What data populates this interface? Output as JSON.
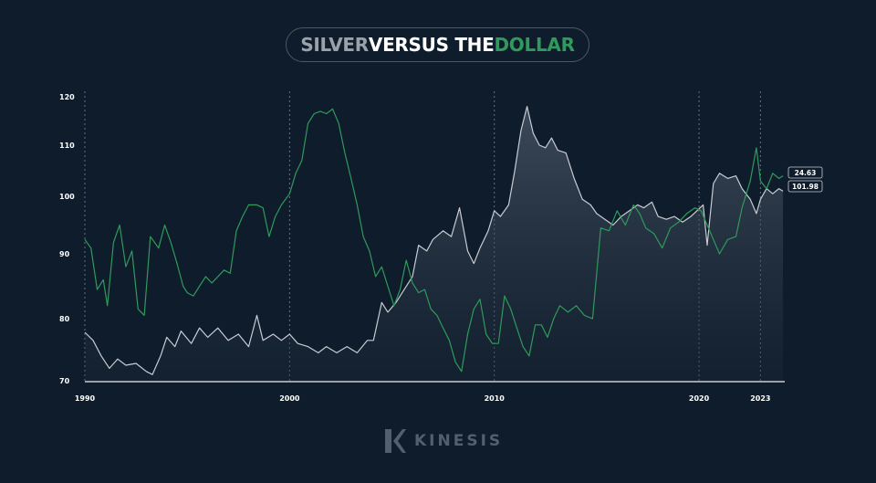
{
  "title": {
    "part1": "SILVER",
    "part2": " VERSUS THE ",
    "part3": "DOLLAR"
  },
  "colors": {
    "background": "#0f1c2b",
    "silver_line": "#c8ccd2",
    "dollar_line": "#2f9a5c",
    "title_silver": "#9aa1aa",
    "title_dollar": "#2f9a5c"
  },
  "logo": {
    "text": "KINESIS",
    "icon": "kinesis-k-icon"
  },
  "chart_data": {
    "type": "line",
    "x_ticks": [
      "1990",
      "2000",
      "2010",
      "2020",
      "2023"
    ],
    "y_ticks": [
      "120",
      "110",
      "100",
      "90",
      "80",
      "70"
    ],
    "xlim": [
      1990,
      2024.2
    ],
    "grid": "vertical dotted lines at 1990, 2000, 2010, 2020, 2023",
    "series": [
      {
        "key": "silver",
        "color": "#c8ccd2",
        "area_fill": true,
        "end_label": "24.63",
        "points": [
          [
            1990,
            77.8
          ],
          [
            1990.4,
            76.5
          ],
          [
            1990.8,
            74.0
          ],
          [
            1991.2,
            72.0
          ],
          [
            1991.6,
            73.5
          ],
          [
            1992.0,
            72.5
          ],
          [
            1992.5,
            72.8
          ],
          [
            1993.0,
            71.5
          ],
          [
            1993.3,
            71.0
          ],
          [
            1993.7,
            74.0
          ],
          [
            1994.0,
            77.0
          ],
          [
            1994.4,
            75.5
          ],
          [
            1994.7,
            78.0
          ],
          [
            1995.2,
            76.0
          ],
          [
            1995.6,
            78.5
          ],
          [
            1996.0,
            77.0
          ],
          [
            1996.5,
            78.5
          ],
          [
            1997.0,
            76.5
          ],
          [
            1997.5,
            77.5
          ],
          [
            1998.0,
            75.5
          ],
          [
            1998.4,
            80.5
          ],
          [
            1998.7,
            76.5
          ],
          [
            1999.2,
            77.5
          ],
          [
            1999.6,
            76.5
          ],
          [
            2000.0,
            77.5
          ],
          [
            2000.4,
            76.0
          ],
          [
            2000.9,
            75.5
          ],
          [
            2001.4,
            74.5
          ],
          [
            2001.8,
            75.5
          ],
          [
            2002.3,
            74.5
          ],
          [
            2002.8,
            75.5
          ],
          [
            2003.3,
            74.5
          ],
          [
            2003.8,
            76.5
          ],
          [
            2004.1,
            76.5
          ],
          [
            2004.5,
            82.5
          ],
          [
            2004.8,
            81.0
          ],
          [
            2005.2,
            82.5
          ],
          [
            2005.6,
            84.5
          ],
          [
            2006.0,
            86.5
          ],
          [
            2006.3,
            91.5
          ],
          [
            2006.7,
            90.5
          ],
          [
            2007.0,
            92.5
          ],
          [
            2007.5,
            94.0
          ],
          [
            2007.9,
            93.0
          ],
          [
            2008.3,
            98.0
          ],
          [
            2008.7,
            90.5
          ],
          [
            2009.0,
            88.5
          ],
          [
            2009.3,
            91.0
          ],
          [
            2009.7,
            94.0
          ],
          [
            2010.0,
            97.5
          ],
          [
            2010.3,
            96.5
          ],
          [
            2010.7,
            98.5
          ],
          [
            2011.0,
            105.0
          ],
          [
            2011.3,
            113.0
          ],
          [
            2011.6,
            118.0
          ],
          [
            2011.9,
            112.5
          ],
          [
            2012.2,
            110.0
          ],
          [
            2012.5,
            109.5
          ],
          [
            2012.8,
            111.5
          ],
          [
            2013.1,
            109.0
          ],
          [
            2013.5,
            108.5
          ],
          [
            2013.9,
            103.5
          ],
          [
            2014.3,
            99.5
          ],
          [
            2014.7,
            98.5
          ],
          [
            2015.0,
            97.0
          ],
          [
            2015.4,
            96.0
          ],
          [
            2015.8,
            95.0
          ],
          [
            2016.2,
            96.5
          ],
          [
            2016.6,
            97.5
          ],
          [
            2017.0,
            98.5
          ],
          [
            2017.3,
            98.0
          ],
          [
            2017.7,
            99.0
          ],
          [
            2018.0,
            96.5
          ],
          [
            2018.4,
            96.0
          ],
          [
            2018.8,
            96.5
          ],
          [
            2019.2,
            95.5
          ],
          [
            2019.6,
            96.5
          ],
          [
            2019.9,
            97.5
          ],
          [
            2020.2,
            98.5
          ],
          [
            2020.4,
            91.5
          ],
          [
            2020.7,
            102.5
          ],
          [
            2021.0,
            104.5
          ],
          [
            2021.4,
            103.5
          ],
          [
            2021.8,
            104.0
          ],
          [
            2022.1,
            101.5
          ],
          [
            2022.5,
            99.5
          ],
          [
            2022.8,
            97.0
          ],
          [
            2023.0,
            99.5
          ],
          [
            2023.3,
            101.5
          ],
          [
            2023.6,
            100.5
          ],
          [
            2023.9,
            101.5
          ],
          [
            2024.1,
            101.0
          ]
        ]
      },
      {
        "key": "dollar",
        "color": "#2f9a5c",
        "area_fill": false,
        "end_label": "101.98",
        "points": [
          [
            1990,
            92.5
          ],
          [
            1990.3,
            91.0
          ],
          [
            1990.6,
            84.5
          ],
          [
            1990.9,
            86.0
          ],
          [
            1991.1,
            82.0
          ],
          [
            1991.4,
            92.0
          ],
          [
            1991.7,
            95.0
          ],
          [
            1992.0,
            88.0
          ],
          [
            1992.3,
            90.5
          ],
          [
            1992.6,
            81.5
          ],
          [
            1992.9,
            80.5
          ],
          [
            1993.2,
            93.0
          ],
          [
            1993.6,
            91.0
          ],
          [
            1993.9,
            95.0
          ],
          [
            1994.2,
            92.0
          ],
          [
            1994.5,
            88.5
          ],
          [
            1994.8,
            85.0
          ],
          [
            1995.0,
            84.0
          ],
          [
            1995.3,
            83.5
          ],
          [
            1995.6,
            85.0
          ],
          [
            1995.9,
            86.5
          ],
          [
            1996.2,
            85.5
          ],
          [
            1996.5,
            86.5
          ],
          [
            1996.8,
            87.5
          ],
          [
            1997.1,
            87.0
          ],
          [
            1997.4,
            94.0
          ],
          [
            1997.7,
            96.5
          ],
          [
            1998.0,
            98.5
          ],
          [
            1998.4,
            98.5
          ],
          [
            1998.7,
            98.0
          ],
          [
            1999.0,
            93.0
          ],
          [
            1999.3,
            96.5
          ],
          [
            1999.6,
            98.5
          ],
          [
            2000.0,
            100.5
          ],
          [
            2000.3,
            104.5
          ],
          [
            2000.6,
            107.0
          ],
          [
            2000.9,
            114.5
          ],
          [
            2001.2,
            116.5
          ],
          [
            2001.5,
            117.0
          ],
          [
            2001.8,
            116.5
          ],
          [
            2002.1,
            117.5
          ],
          [
            2002.4,
            114.5
          ],
          [
            2002.7,
            108.5
          ],
          [
            2003.0,
            103.5
          ],
          [
            2003.3,
            98.5
          ],
          [
            2003.6,
            93.0
          ],
          [
            2003.9,
            90.5
          ],
          [
            2004.2,
            86.5
          ],
          [
            2004.5,
            88.0
          ],
          [
            2004.8,
            85.0
          ],
          [
            2005.1,
            82.0
          ],
          [
            2005.4,
            84.5
          ],
          [
            2005.7,
            89.0
          ],
          [
            2006.0,
            85.5
          ],
          [
            2006.3,
            84.0
          ],
          [
            2006.6,
            84.5
          ],
          [
            2006.9,
            81.5
          ],
          [
            2007.2,
            80.5
          ],
          [
            2007.5,
            78.5
          ],
          [
            2007.8,
            76.5
          ],
          [
            2008.1,
            73.0
          ],
          [
            2008.4,
            71.5
          ],
          [
            2008.7,
            77.5
          ],
          [
            2009.0,
            81.5
          ],
          [
            2009.3,
            83.0
          ],
          [
            2009.6,
            77.5
          ],
          [
            2009.9,
            76.0
          ],
          [
            2010.2,
            76.0
          ],
          [
            2010.5,
            83.5
          ],
          [
            2010.8,
            81.5
          ],
          [
            2011.1,
            78.5
          ],
          [
            2011.4,
            75.5
          ],
          [
            2011.7,
            74.0
          ],
          [
            2012.0,
            79.0
          ],
          [
            2012.3,
            79.0
          ],
          [
            2012.6,
            77.0
          ],
          [
            2012.9,
            80.0
          ],
          [
            2013.2,
            82.0
          ],
          [
            2013.6,
            81.0
          ],
          [
            2014.0,
            82.0
          ],
          [
            2014.4,
            80.5
          ],
          [
            2014.8,
            80.0
          ],
          [
            2015.2,
            94.5
          ],
          [
            2015.6,
            94.0
          ],
          [
            2016.0,
            97.5
          ],
          [
            2016.4,
            95.0
          ],
          [
            2016.8,
            98.5
          ],
          [
            2017.1,
            97.0
          ],
          [
            2017.4,
            94.5
          ],
          [
            2017.8,
            93.5
          ],
          [
            2018.2,
            91.0
          ],
          [
            2018.6,
            94.5
          ],
          [
            2019.0,
            95.5
          ],
          [
            2019.4,
            97.0
          ],
          [
            2019.8,
            98.0
          ],
          [
            2020.1,
            97.5
          ],
          [
            2020.4,
            95.0
          ],
          [
            2020.7,
            92.5
          ],
          [
            2021.0,
            90.0
          ],
          [
            2021.4,
            92.5
          ],
          [
            2021.8,
            93.0
          ],
          [
            2022.1,
            98.0
          ],
          [
            2022.5,
            103.0
          ],
          [
            2022.8,
            109.5
          ],
          [
            2023.0,
            103.0
          ],
          [
            2023.3,
            101.5
          ],
          [
            2023.6,
            104.5
          ],
          [
            2023.9,
            103.5
          ],
          [
            2024.1,
            104.0
          ]
        ]
      }
    ]
  }
}
